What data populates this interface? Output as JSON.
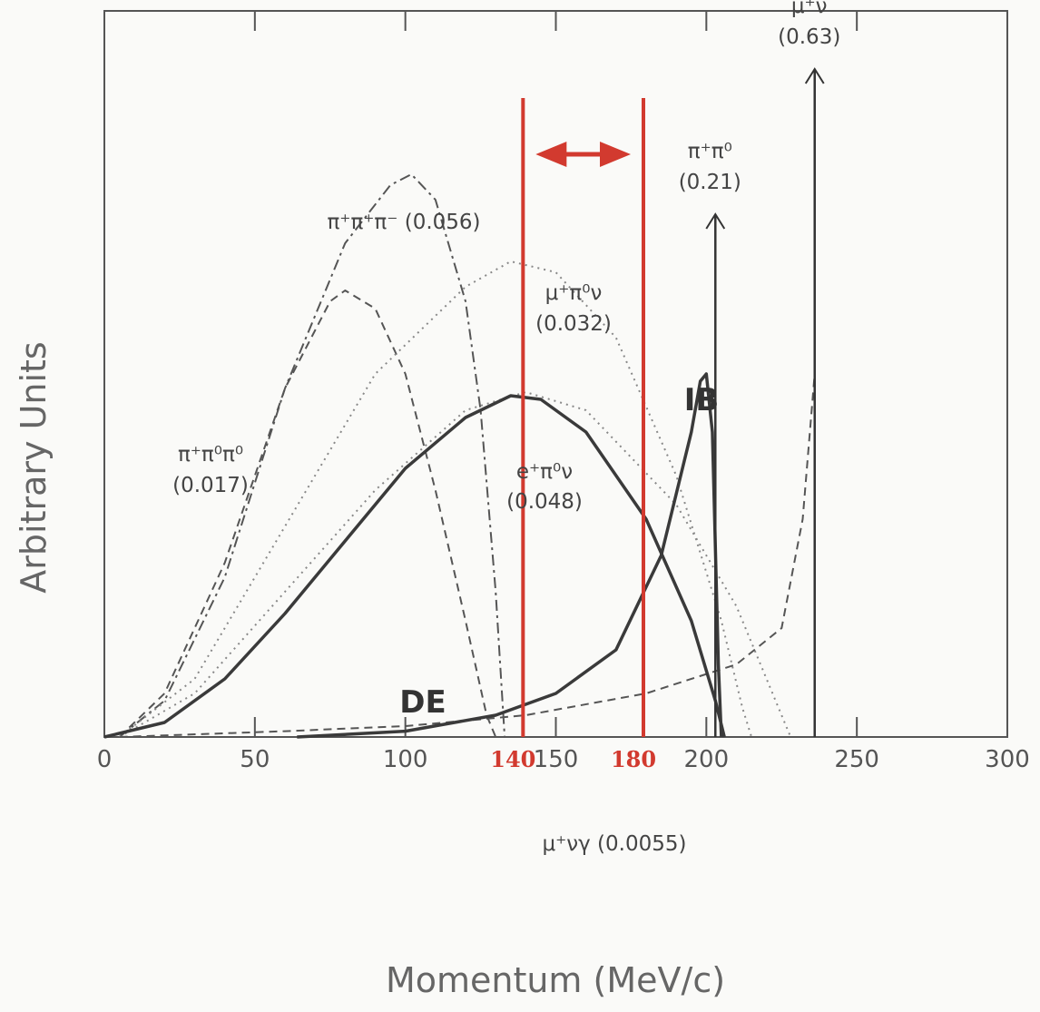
{
  "chart_data": {
    "type": "line",
    "xlabel": "Momentum (MeV/c)",
    "ylabel": "Arbitrary Units",
    "xlim": [
      0,
      300
    ],
    "ylim": [
      0,
      1.0
    ],
    "x_ticks": [
      "0",
      "50",
      "100",
      "150",
      "200",
      "250",
      "300"
    ],
    "highlight_ticks": [
      "140",
      "180"
    ],
    "highlight_color": "#d23a2f",
    "signal_region": [
      140,
      180
    ],
    "series": [
      {
        "name": "π⁺π⁰π⁰ (0.017)",
        "style": "dashed",
        "points": [
          [
            5,
            0
          ],
          [
            20,
            0.06
          ],
          [
            40,
            0.24
          ],
          [
            60,
            0.48
          ],
          [
            75,
            0.6
          ],
          [
            80,
            0.615
          ],
          [
            90,
            0.59
          ],
          [
            100,
            0.5
          ],
          [
            110,
            0.34
          ],
          [
            120,
            0.16
          ],
          [
            127,
            0.03
          ],
          [
            130,
            0
          ]
        ]
      },
      {
        "name": "π⁺π⁺π⁻ (0.056)",
        "style": "dashdot",
        "points": [
          [
            5,
            0
          ],
          [
            20,
            0.05
          ],
          [
            40,
            0.22
          ],
          [
            60,
            0.48
          ],
          [
            80,
            0.68
          ],
          [
            95,
            0.76
          ],
          [
            102,
            0.775
          ],
          [
            110,
            0.74
          ],
          [
            120,
            0.6
          ],
          [
            125,
            0.45
          ],
          [
            130,
            0.2
          ],
          [
            133,
            0
          ]
        ]
      },
      {
        "name": "μ⁺π⁰ν (0.032)",
        "style": "dotted",
        "points": [
          [
            5,
            0
          ],
          [
            30,
            0.08
          ],
          [
            60,
            0.29
          ],
          [
            90,
            0.5
          ],
          [
            120,
            0.62
          ],
          [
            135,
            0.655
          ],
          [
            150,
            0.64
          ],
          [
            170,
            0.55
          ],
          [
            190,
            0.36
          ],
          [
            205,
            0.16
          ],
          [
            212,
            0.04
          ],
          [
            215,
            0
          ]
        ]
      },
      {
        "name": "e⁺π⁰ν (0.048)",
        "style": "dotted",
        "points": [
          [
            5,
            0
          ],
          [
            30,
            0.06
          ],
          [
            60,
            0.2
          ],
          [
            90,
            0.34
          ],
          [
            120,
            0.45
          ],
          [
            140,
            0.475
          ],
          [
            160,
            0.45
          ],
          [
            190,
            0.32
          ],
          [
            210,
            0.18
          ],
          [
            222,
            0.06
          ],
          [
            228,
            0
          ]
        ]
      },
      {
        "name": "μ⁺νγ (0.0055)",
        "style": "dashed",
        "points": [
          [
            5,
            0
          ],
          [
            60,
            0.008
          ],
          [
            100,
            0.015
          ],
          [
            140,
            0.03
          ],
          [
            180,
            0.06
          ],
          [
            210,
            0.1
          ],
          [
            225,
            0.15
          ],
          [
            232,
            0.3
          ],
          [
            235,
            0.45
          ],
          [
            236,
            0.5
          ],
          [
            236,
            0
          ]
        ]
      },
      {
        "name": "DE",
        "style": "solid-thick",
        "points": [
          [
            0,
            0
          ],
          [
            20,
            0.02
          ],
          [
            40,
            0.08
          ],
          [
            60,
            0.17
          ],
          [
            80,
            0.27
          ],
          [
            100,
            0.37
          ],
          [
            120,
            0.44
          ],
          [
            135,
            0.47
          ],
          [
            145,
            0.465
          ],
          [
            160,
            0.42
          ],
          [
            180,
            0.3
          ],
          [
            195,
            0.16
          ],
          [
            203,
            0.05
          ],
          [
            206,
            0
          ]
        ]
      },
      {
        "name": "IB",
        "style": "solid-thick",
        "points": [
          [
            64,
            0
          ],
          [
            100,
            0.008
          ],
          [
            130,
            0.03
          ],
          [
            150,
            0.06
          ],
          [
            170,
            0.12
          ],
          [
            185,
            0.25
          ],
          [
            195,
            0.42
          ],
          [
            198,
            0.49
          ],
          [
            200,
            0.5
          ],
          [
            202,
            0.42
          ],
          [
            204,
            0.1
          ],
          [
            205,
            0
          ]
        ]
      }
    ],
    "arrows": [
      {
        "x": 203,
        "height": 0.72,
        "label": "π⁺π⁰",
        "value": "(0.21)"
      },
      {
        "x": 236,
        "height": 0.92,
        "label": "μ⁺ν",
        "value": "(0.63)"
      }
    ],
    "annotations": {
      "ppp_neutral_label": "π⁺π⁰π⁰",
      "ppp_neutral_value": "(0.017)",
      "ppp_charged": "π⁺π⁺π⁻ (0.056)",
      "mu_pi0_nu_label": "μ⁺π⁰ν",
      "mu_pi0_nu_value": "(0.032)",
      "e_pi0_nu_label": "e⁺π⁰ν",
      "e_pi0_nu_value": "(0.048)",
      "mu_nu_gamma": "μ⁺νγ (0.0055)",
      "de": "DE",
      "ib": "IB"
    }
  }
}
